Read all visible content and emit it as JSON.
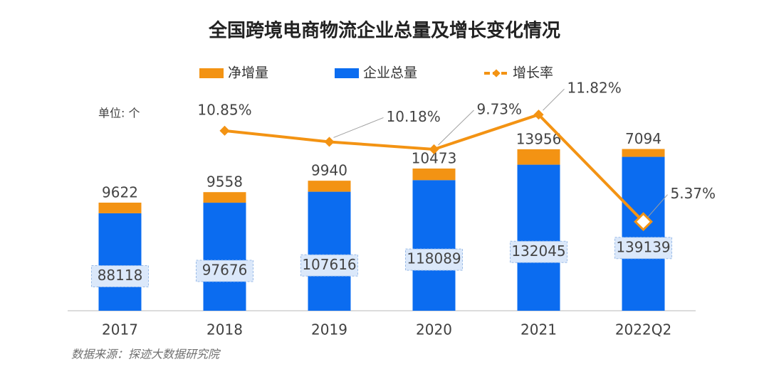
{
  "chart_data": {
    "type": "bar",
    "stacked": true,
    "title": "全国跨境电商物流企业总量及增长变化情况",
    "unit_label": "单位: 个",
    "source": "数据来源：探迹大数据研究院",
    "categories": [
      "2017",
      "2018",
      "2019",
      "2020",
      "2021",
      "2022Q2"
    ],
    "series": [
      {
        "name": "净增量",
        "color": "#f39313",
        "values": [
          9622,
          9558,
          9940,
          10473,
          13956,
          7094
        ]
      },
      {
        "name": "企业总量",
        "color": "#0b6cf0",
        "values": [
          88118,
          97676,
          107616,
          118089,
          132045,
          139139
        ]
      },
      {
        "name": "增长率",
        "type": "line",
        "axis": "y2",
        "color": "#f39313",
        "values": [
          null,
          10.85,
          10.18,
          9.73,
          11.82,
          5.37
        ],
        "value_labels": [
          null,
          "10.85%",
          "10.18%",
          "9.73%",
          "11.82%",
          "5.37%"
        ]
      }
    ],
    "ylim": [
      0,
      180000
    ],
    "y2lim": [
      0,
      12
    ]
  }
}
